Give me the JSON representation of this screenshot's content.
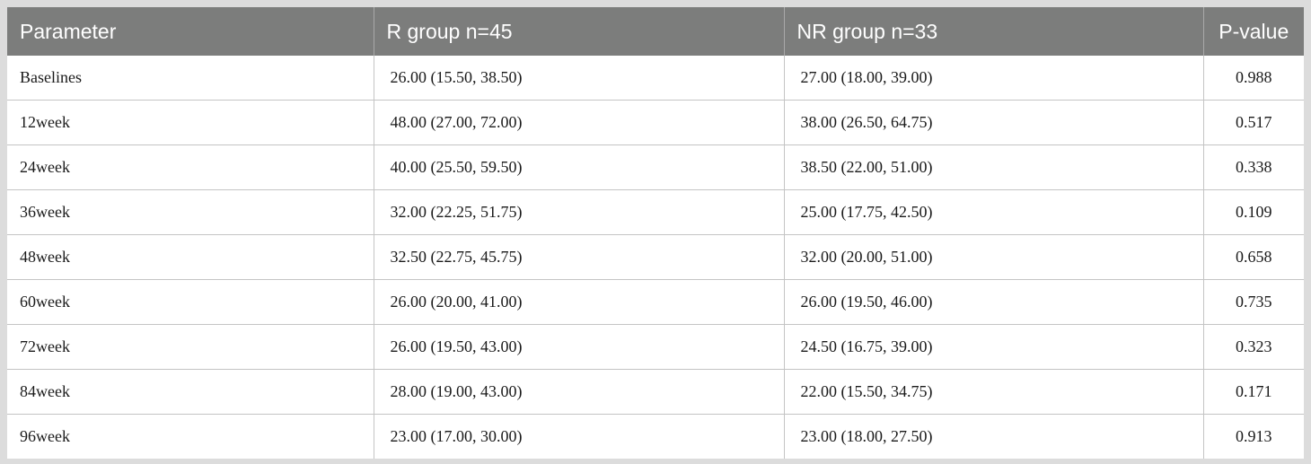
{
  "table": {
    "headers": [
      "Parameter",
      "R group n=45",
      "NR group n=33",
      "P-value"
    ],
    "rows": [
      [
        "Baselines",
        "26.00 (15.50, 38.50)",
        "27.00 (18.00, 39.00)",
        "0.988"
      ],
      [
        "12week",
        "48.00 (27.00, 72.00)",
        "38.00 (26.50, 64.75)",
        "0.517"
      ],
      [
        "24week",
        "40.00 (25.50, 59.50)",
        "38.50 (22.00, 51.00)",
        "0.338"
      ],
      [
        "36week",
        "32.00 (22.25, 51.75)",
        "25.00 (17.75, 42.50)",
        "0.109"
      ],
      [
        "48week",
        "32.50 (22.75, 45.75)",
        "32.00 (20.00, 51.00)",
        "0.658"
      ],
      [
        "60week",
        "26.00 (20.00, 41.00)",
        "26.00 (19.50, 46.00)",
        "0.735"
      ],
      [
        "72week",
        "26.00 (19.50, 43.00)",
        "24.50 (16.75, 39.00)",
        "0.323"
      ],
      [
        "84week",
        "28.00 (19.00, 43.00)",
        "22.00 (15.50, 34.75)",
        "0.171"
      ],
      [
        "96week",
        "23.00 (17.00, 30.00)",
        "23.00 (18.00, 27.50)",
        "0.913"
      ]
    ]
  }
}
